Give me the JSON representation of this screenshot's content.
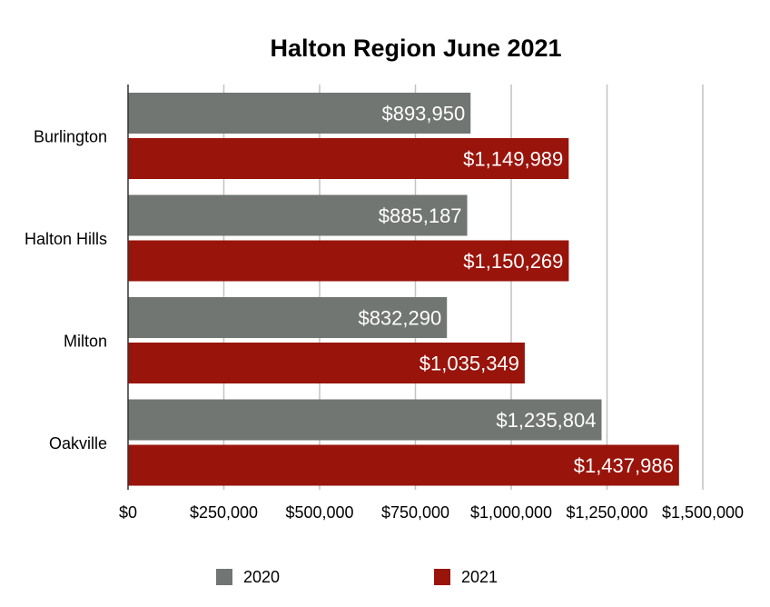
{
  "chart_data": {
    "type": "bar",
    "orientation": "horizontal",
    "title": "Halton Region June 2021",
    "xlabel": "",
    "ylabel": "",
    "categories": [
      "Burlington",
      "Halton Hills",
      "Milton",
      "Oakville"
    ],
    "series": [
      {
        "name": "2020",
        "color": "#717672",
        "values": [
          893950,
          885187,
          832290,
          1235804
        ],
        "labels": [
          "$893,950",
          "$885,187",
          "$832,290",
          "$1,235,804"
        ]
      },
      {
        "name": "2021",
        "color": "#99140b",
        "values": [
          1149989,
          1150269,
          1035349,
          1437986
        ],
        "labels": [
          "$1,149,989",
          "$1,150,269",
          "$1,035,349",
          "$1,437,986"
        ]
      }
    ],
    "xlim": [
      0,
      1500000
    ],
    "x_ticks": [
      0,
      250000,
      500000,
      750000,
      1000000,
      1250000,
      1500000
    ],
    "x_tick_labels": [
      "$0",
      "$250,000",
      "$500,000",
      "$750,000",
      "$1,000,000",
      "$1,250,000",
      "$1,500,000"
    ],
    "grid": true,
    "legend_position": "bottom"
  }
}
